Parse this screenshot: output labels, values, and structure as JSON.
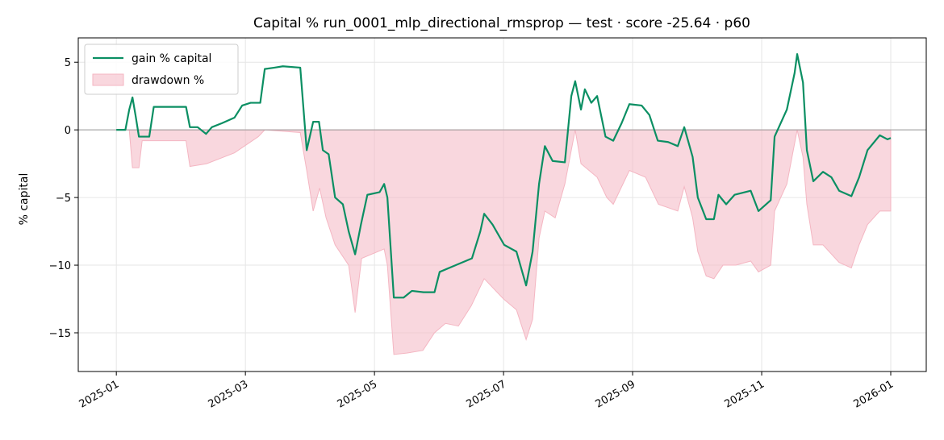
{
  "chart_data": {
    "type": "line",
    "title": "Capital % run_0001_mlp_directional_rmsprop — test · score -25.64 · p60",
    "y_label": "% capital",
    "xlim": [
      -0.59,
      12.55
    ],
    "ylim": [
      -17.86,
      6.8
    ],
    "xticks": [
      {
        "value": 0,
        "label": "2025-01"
      },
      {
        "value": 2,
        "label": "2025-03"
      },
      {
        "value": 4,
        "label": "2025-05"
      },
      {
        "value": 6,
        "label": "2025-07"
      },
      {
        "value": 8,
        "label": "2025-09"
      },
      {
        "value": 10,
        "label": "2025-11"
      },
      {
        "value": 12,
        "label": "2026-01"
      }
    ],
    "yticks": [
      {
        "value": -15,
        "label": "−15"
      },
      {
        "value": -10,
        "label": "−10"
      },
      {
        "value": -5,
        "label": "−5"
      },
      0,
      5
    ],
    "grid": true,
    "reference_line": 0,
    "legend": "upper left",
    "series": [
      {
        "name": "gain % capital",
        "kind": "line",
        "color": "#0b8f63",
        "x": [
          0,
          0.14,
          0.2,
          0.25,
          0.3,
          0.35,
          0.51,
          0.58,
          1.08,
          1.14,
          1.26,
          1.39,
          1.48,
          1.64,
          1.83,
          1.95,
          2.08,
          2.23,
          2.3,
          2.45,
          2.58,
          2.85,
          2.95,
          3.05,
          3.14,
          3.2,
          3.29,
          3.39,
          3.51,
          3.6,
          3.7,
          3.79,
          3.89,
          4.08,
          4.15,
          4.2,
          4.3,
          4.45,
          4.58,
          4.76,
          4.93,
          5.01,
          5.26,
          5.51,
          5.64,
          5.7,
          5.83,
          6.01,
          6.2,
          6.35,
          6.45,
          6.55,
          6.64,
          6.76,
          6.95,
          7.05,
          7.11,
          7.2,
          7.26,
          7.36,
          7.45,
          7.58,
          7.7,
          7.83,
          7.95,
          8.14,
          8.26,
          8.39,
          8.55,
          8.7,
          8.8,
          8.93,
          9.01,
          9.14,
          9.26,
          9.33,
          9.45,
          9.58,
          9.83,
          9.95,
          10.14,
          10.2,
          10.39,
          10.51,
          10.55,
          10.64,
          10.7,
          10.8,
          10.95,
          11.08,
          11.2,
          11.39,
          11.51,
          11.64,
          11.83,
          11.95,
          12.0
        ],
        "values": [
          0,
          0,
          1.5,
          2.4,
          1.0,
          -0.5,
          -0.5,
          1.7,
          1.7,
          0.2,
          0.2,
          -0.3,
          0.2,
          0.5,
          0.9,
          1.8,
          2.0,
          2.0,
          4.5,
          4.6,
          4.7,
          4.6,
          -1.5,
          0.6,
          0.6,
          -1.5,
          -1.8,
          -5,
          -5.5,
          -7.5,
          -9.2,
          -7,
          -4.8,
          -4.6,
          -4.0,
          -5,
          -12.4,
          -12.4,
          -11.9,
          -12.0,
          -12,
          -10.5,
          -10,
          -9.5,
          -7.5,
          -6.2,
          -7,
          -8.5,
          -9,
          -11.5,
          -9,
          -4,
          -1.2,
          -2.3,
          -2.4,
          2.5,
          3.6,
          1.5,
          3.0,
          2.0,
          2.5,
          -0.5,
          -0.8,
          0.5,
          1.9,
          1.8,
          1.1,
          -0.8,
          -0.9,
          -1.2,
          0.2,
          -2,
          -5,
          -6.6,
          -6.6,
          -4.8,
          -5.5,
          -4.8,
          -4.5,
          -6.0,
          -5.2,
          -0.5,
          1.5,
          4.2,
          5.6,
          3.5,
          -1.5,
          -3.8,
          -3.1,
          -3.5,
          -4.5,
          -4.9,
          -3.5,
          -1.5,
          -0.4,
          -0.7,
          -0.6
        ]
      },
      {
        "name": "drawdown %",
        "kind": "area",
        "color": "#f4b6c2",
        "x": [
          0,
          0.2,
          0.25,
          0.35,
          0.4,
          1.08,
          1.14,
          1.4,
          1.83,
          2.2,
          2.3,
          2.85,
          2.95,
          3.05,
          3.15,
          3.25,
          3.39,
          3.6,
          3.7,
          3.8,
          4.15,
          4.2,
          4.3,
          4.5,
          4.75,
          4.93,
          5.1,
          5.3,
          5.5,
          5.7,
          6.0,
          6.2,
          6.35,
          6.45,
          6.55,
          6.64,
          6.8,
          6.95,
          7.11,
          7.2,
          7.45,
          7.6,
          7.7,
          7.95,
          8.2,
          8.4,
          8.7,
          8.8,
          8.93,
          9.01,
          9.14,
          9.26,
          9.4,
          9.6,
          9.83,
          9.95,
          10.14,
          10.2,
          10.39,
          10.55,
          10.64,
          10.7,
          10.8,
          10.95,
          11.2,
          11.39,
          11.51,
          11.64,
          11.83,
          12.0
        ],
        "values": [
          0,
          0,
          -2.8,
          -2.8,
          -0.8,
          -0.8,
          -2.7,
          -2.5,
          -1.7,
          -0.5,
          0,
          -0.2,
          -3,
          -6,
          -4.3,
          -6.5,
          -8.5,
          -10,
          -13.5,
          -9.5,
          -8.8,
          -10,
          -16.6,
          -16.5,
          -16.3,
          -15,
          -14.3,
          -14.5,
          -13,
          -11,
          -12.5,
          -13.3,
          -15.5,
          -14,
          -8,
          -6,
          -6.5,
          -4,
          0,
          -2.5,
          -3.5,
          -5,
          -5.5,
          -3,
          -3.5,
          -5.5,
          -6,
          -4.2,
          -6.5,
          -9,
          -10.8,
          -11,
          -10,
          -10,
          -9.7,
          -10.5,
          -10,
          -6,
          -4,
          0,
          -2,
          -5.5,
          -8.5,
          -8.5,
          -9.8,
          -10.2,
          -8.5,
          -7,
          -6,
          -6
        ]
      }
    ]
  }
}
